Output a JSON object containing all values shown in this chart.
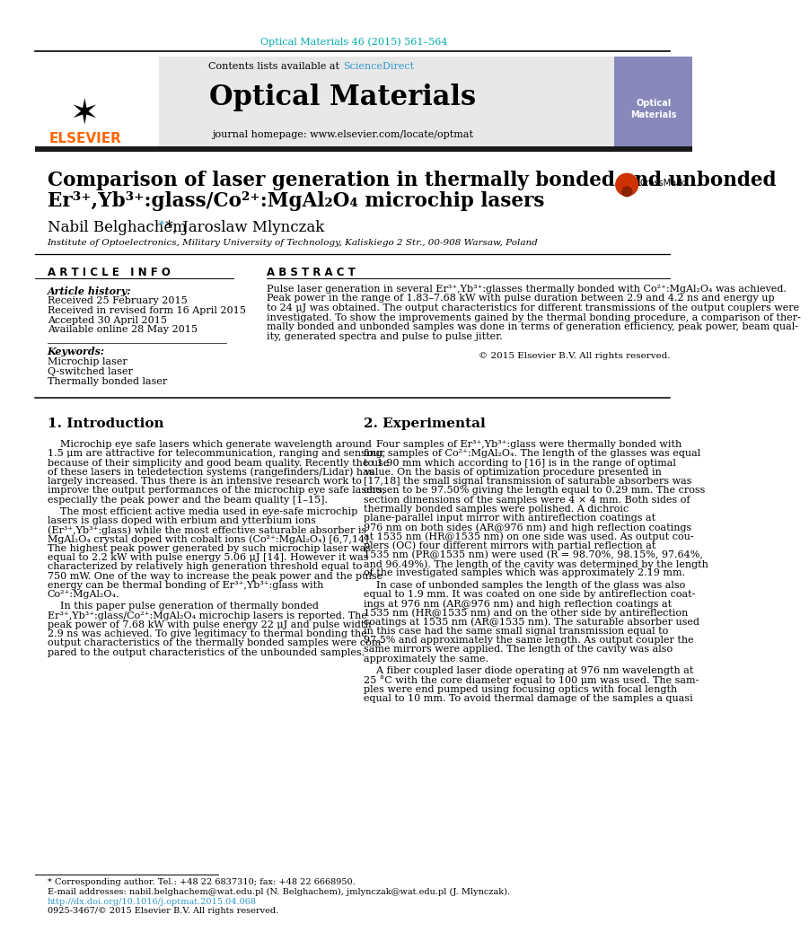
{
  "journal_ref": "Optical Materials 46 (2015) 561–564",
  "journal_name": "Optical Materials",
  "journal_homepage": "journal homepage: www.elsevier.com/locate/optmat",
  "contents_line": "Contents lists available at ",
  "sciencedirect": "ScienceDirect",
  "title_line1": "Comparison of laser generation in thermally bonded and unbonded",
  "title_line2": "Er³⁺,Yb³⁺:glass/Co²⁺:MgAl₂O₄ microchip lasers",
  "authors_part1": "Nabil Belghachem",
  "authors_part2": " *, Jaroslaw Mlynczak",
  "affiliation": "Institute of Optoelectronics, Military University of Technology, Kaliskiego 2 Str., 00-908 Warsaw, Poland",
  "article_info_title": "A R T I C L E   I N F O",
  "abstract_title": "A B S T R A C T",
  "article_history_label": "Article history:",
  "received": "Received 25 February 2015",
  "received_revised": "Received in revised form 16 April 2015",
  "accepted": "Accepted 30 April 2015",
  "available": "Available online 28 May 2015",
  "keywords_label": "Keywords:",
  "keyword1": "Microchip laser",
  "keyword2": "Q-switched laser",
  "keyword3": "Thermally bonded laser",
  "copyright": "© 2015 Elsevier B.V. All rights reserved.",
  "section1_title": "1. Introduction",
  "section2_title": "2. Experimental",
  "footnote_star": "* Corresponding author. Tel.: +48 22 6837310; fax: +48 22 6668950.",
  "footnote_email": "E-mail addresses: nabil.belghachem@wat.edu.pl (N. Belghachem), jmlynczak@wat.edu.pl (J. Mlynczak).",
  "footnote_doi": "http://dx.doi.org/10.1016/j.optmat.2015.04.068",
  "footnote_issn": "0925-3467/© 2015 Elsevier B.V. All rights reserved.",
  "elsevier_color": "#FF6600",
  "cyan_color": "#00AAAA",
  "link_color": "#3399CC",
  "header_bg": "#E8E8E8",
  "dark_bar_color": "#1A1A1A",
  "abstract_lines": [
    "Pulse laser generation in several Er³⁺,Yb³⁺:glasses thermally bonded with Co²⁺:MgAl₂O₄ was achieved.",
    "Peak power in the range of 1.83–7.68 kW with pulse duration between 2.9 and 4.2 ns and energy up",
    "to 24 μJ was obtained. The output characteristics for different transmissions of the output couplers were",
    "investigated. To show the improvements gained by the thermal bonding procedure, a comparison of ther-",
    "mally bonded and unbonded samples was done in terms of generation efficiency, peak power, beam qual-",
    "ity, generated spectra and pulse to pulse jitter."
  ],
  "intro_p1": [
    "    Microchip eye safe lasers which generate wavelength around",
    "1.5 μm are attractive for telecommunication, ranging and sensing,",
    "because of their simplicity and good beam quality. Recently the use",
    "of these lasers in teledetection systems (rangefinders/Lidar) has",
    "largely increased. Thus there is an intensive research work to",
    "improve the output performances of the microchip eye safe lasers,",
    "especially the peak power and the beam quality [1–15]."
  ],
  "intro_p2": [
    "    The most efficient active media used in eye-safe microchip",
    "lasers is glass doped with erbium and ytterbium ions",
    "(Er³⁺,Yb³⁺:glass) while the most effective saturable absorber is",
    "MgAl₂O₄ crystal doped with cobalt ions (Co²⁺:MgAl₂O₄) [6,7,14].",
    "The highest peak power generated by such microchip laser was",
    "equal to 2.2 kW with pulse energy 5.06 μJ [14]. However it was",
    "characterized by relatively high generation threshold equal to",
    "750 mW. One of the way to increase the peak power and the pulse",
    "energy can be thermal bonding of Er³⁺,Yb³⁺:glass with",
    "Co²⁺:MgAl₂O₄."
  ],
  "intro_p3": [
    "    In this paper pulse generation of thermally bonded",
    "Er³⁺,Yb³⁺:glass/Co²⁺:MgAl₂O₄ microchip lasers is reported. The",
    "peak power of 7.68 kW with pulse energy 22 μJ and pulse width",
    "2.9 ns was achieved. To give legitimacy to thermal bonding the",
    "output characteristics of the thermally bonded samples were com-",
    "pared to the output characteristics of the unbounded samples."
  ],
  "exp_p1a": [
    "    Four samples of Er³⁺,Yb³⁺:glass were thermally bonded with",
    "four samples of Co²⁺:MgAl₂O₄. The length of the glasses was equal",
    "to 1.90 mm which according to [16] is in the range of optimal",
    "value. On the basis of optimization procedure presented in",
    "[17,18] the small signal transmission of saturable absorbers was",
    "chosen to be 97.50% giving the length equal to 0.29 mm. The cross",
    "section dimensions of the samples were 4 × 4 mm. Both sides of",
    "thermally bonded samples were polished. A dichroic",
    "plane-parallel input mirror with antireflection coatings at",
    "976 nm on both sides (AR@976 nm) and high reflection coatings",
    "at 1535 nm (HR@1535 nm) on one side was used. As output cou-",
    "plers (OC) four different mirrors with partial reflection at",
    "1535 nm (PR@1535 nm) were used (R = 98.70%, 98.15%, 97.64%,",
    "and 96.49%). The length of the cavity was determined by the length",
    "of the investigated samples which was approximately 2.19 mm."
  ],
  "exp_p2": [
    "    In case of unbonded samples the length of the glass was also",
    "equal to 1.9 mm. It was coated on one side by antireflection coat-",
    "ings at 976 nm (AR@976 nm) and high reflection coatings at",
    "1535 nm (HR@1535 nm) and on the other side by antireflection",
    "coatings at 1535 nm (AR@1535 nm). The saturable absorber used",
    "in this case had the same small signal transmission equal to",
    "97.5% and approximately the same length. As output coupler the",
    "same mirrors were applied. The length of the cavity was also",
    "approximately the same."
  ],
  "exp_p3": [
    "    A fiber coupled laser diode operating at 976 nm wavelength at",
    "25 °C with the core diameter equal to 100 μm was used. The sam-",
    "ples were end pumped using focusing optics with focal length",
    "equal to 10 mm. To avoid thermal damage of the samples a quasi"
  ]
}
